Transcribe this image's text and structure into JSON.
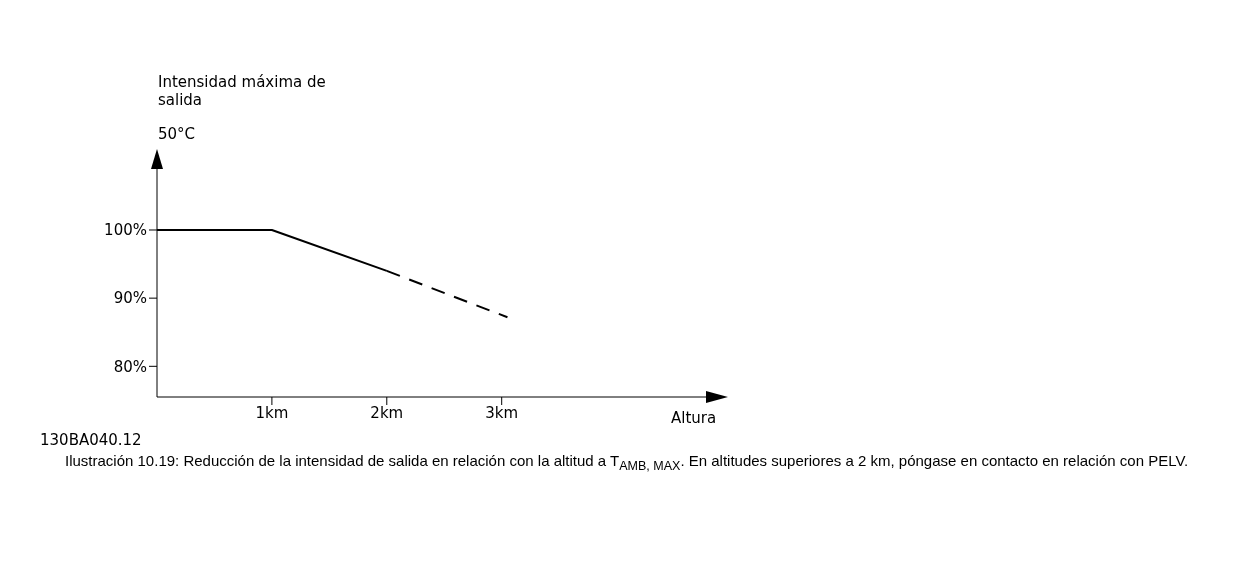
{
  "chart_data": {
    "type": "line",
    "ylabel": "Intensidad máxima de salida",
    "xlabel": "Altura",
    "annotations": [
      "50°C",
      "130BA040.12",
      "Ilustración 10.19: Reducción de la intensidad de salida en relación con la altitud a T$_{AMB, MAX}$. En altitudes superiores a 2 km, póngase en contacto en relación con PELV."
    ],
    "series": [
      {
        "color": "#000000",
        "line_style": "solid",
        "x": [
          0,
          1,
          2
        ],
        "values": [
          100,
          100,
          94
        ]
      },
      {
        "color": "#000000",
        "line_style": "dashed",
        "x": [
          2,
          3.05
        ],
        "values": [
          94,
          87.2
        ]
      }
    ],
    "xlim": [
      0,
      4.9
    ],
    "ylim": [
      75.5,
      111
    ],
    "xticks": [
      {
        "value": 1,
        "label": "1km"
      },
      {
        "value": 2,
        "label": "2km"
      },
      {
        "value": 3,
        "label": "3km"
      }
    ],
    "yticks": [
      {
        "value": 80,
        "label": "80%"
      },
      {
        "value": 90,
        "label": "90%"
      },
      {
        "value": 100,
        "label": "100%"
      }
    ],
    "grid": false,
    "marker": "none"
  }
}
